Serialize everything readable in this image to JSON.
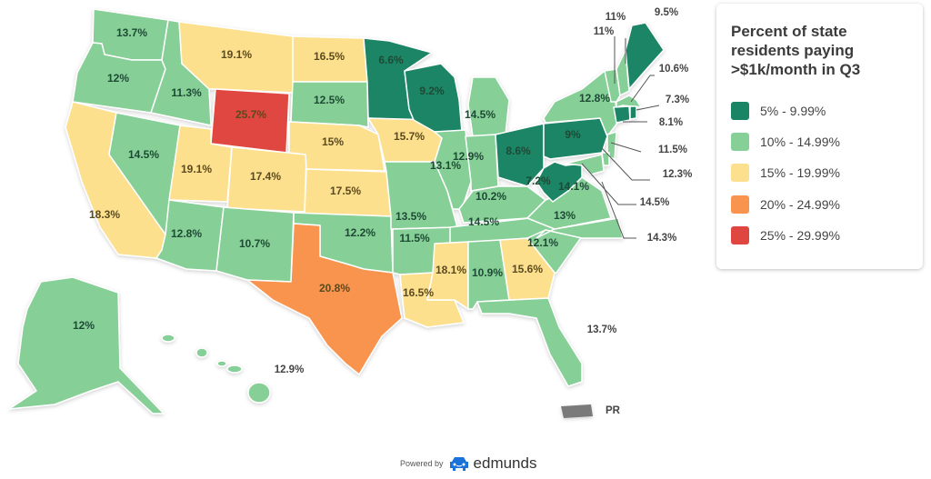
{
  "legend": {
    "title_lines": [
      "Percent of state",
      "residents paying",
      ">$1k/month in Q3"
    ],
    "items": [
      {
        "label": "5% - 9.99%",
        "color": "#1a8565"
      },
      {
        "label": "10% - 14.99%",
        "color": "#86cf97"
      },
      {
        "label": "15% - 19.99%",
        "color": "#fde08e"
      },
      {
        "label": "20% - 24.99%",
        "color": "#f9944f"
      },
      {
        "label": "25% - 29.99%",
        "color": "#e04640"
      }
    ]
  },
  "footer": {
    "powered_by": "Powered by",
    "brand": "edmunds",
    "icon": "car-icon"
  },
  "territories": {
    "pr_label": "PR"
  },
  "chart_data": {
    "type": "choropleth",
    "title": "Percent of state residents paying >$1k/month in Q3",
    "bins": [
      "5% - 9.99%",
      "10% - 14.99%",
      "15% - 19.99%",
      "20% - 24.99%",
      "25% - 29.99%"
    ],
    "states": {
      "WA": 13.7,
      "OR": 12.0,
      "CA": 18.3,
      "ID": 11.3,
      "NV": 14.5,
      "MT": 19.1,
      "WY": 25.7,
      "UT": 19.1,
      "CO": 17.4,
      "AZ": 12.8,
      "NM": 10.7,
      "ND": 16.5,
      "SD": 12.5,
      "NE": 15.0,
      "KS": 17.5,
      "OK": 12.2,
      "TX": 20.8,
      "MN": 6.6,
      "IA": 15.7,
      "MO": 13.5,
      "AR": 11.5,
      "LA": 16.5,
      "WI": 9.2,
      "IL": 13.1,
      "MI": 14.5,
      "IN": 12.9,
      "OH": 8.6,
      "KY": 10.2,
      "TN": 14.5,
      "MS": 18.1,
      "AL": 10.9,
      "GA": 15.6,
      "FL": 13.7,
      "SC": 12.1,
      "NC": 13.0,
      "VA": 14.1,
      "WV": 7.2,
      "PA": 9.0,
      "NY": 12.8,
      "VT": 11.0,
      "NH": 11.0,
      "ME": 9.5,
      "MA": 10.6,
      "RI": 7.3,
      "CT": 8.1,
      "NJ": 11.5,
      "DE": 12.3,
      "MD": 14.5,
      "DC": 14.3,
      "AK": 12.0,
      "HI": 12.9
    },
    "labels": {
      "WA": "13.7%",
      "OR": "12%",
      "CA": "18.3%",
      "ID": "11.3%",
      "NV": "14.5%",
      "MT": "19.1%",
      "WY": "25.7%",
      "UT": "19.1%",
      "CO": "17.4%",
      "AZ": "12.8%",
      "NM": "10.7%",
      "ND": "16.5%",
      "SD": "12.5%",
      "NE": "15%",
      "KS": "17.5%",
      "OK": "12.2%",
      "TX": "20.8%",
      "MN": "6.6%",
      "IA": "15.7%",
      "MO": "13.5%",
      "AR": "11.5%",
      "LA": "16.5%",
      "WI": "9.2%",
      "IL": "13.1%",
      "MI": "14.5%",
      "IN": "12.9%",
      "OH": "8.6%",
      "KY": "10.2%",
      "TN": "14.5%",
      "MS": "18.1%",
      "AL": "10.9%",
      "GA": "15.6%",
      "FL": "13.7%",
      "SC": "12.1%",
      "NC": "13%",
      "VA": "14.1%",
      "WV": "7.2%",
      "PA": "9%",
      "NY": "12.8%",
      "VT": "11%",
      "NH": "11%",
      "ME": "9.5%",
      "MA": "10.6%",
      "RI": "7.3%",
      "CT": "8.1%",
      "NJ": "11.5%",
      "DE": "12.3%",
      "MD": "14.5%",
      "DC": "14.3%",
      "AK": "12%",
      "HI": "12.9%"
    }
  }
}
